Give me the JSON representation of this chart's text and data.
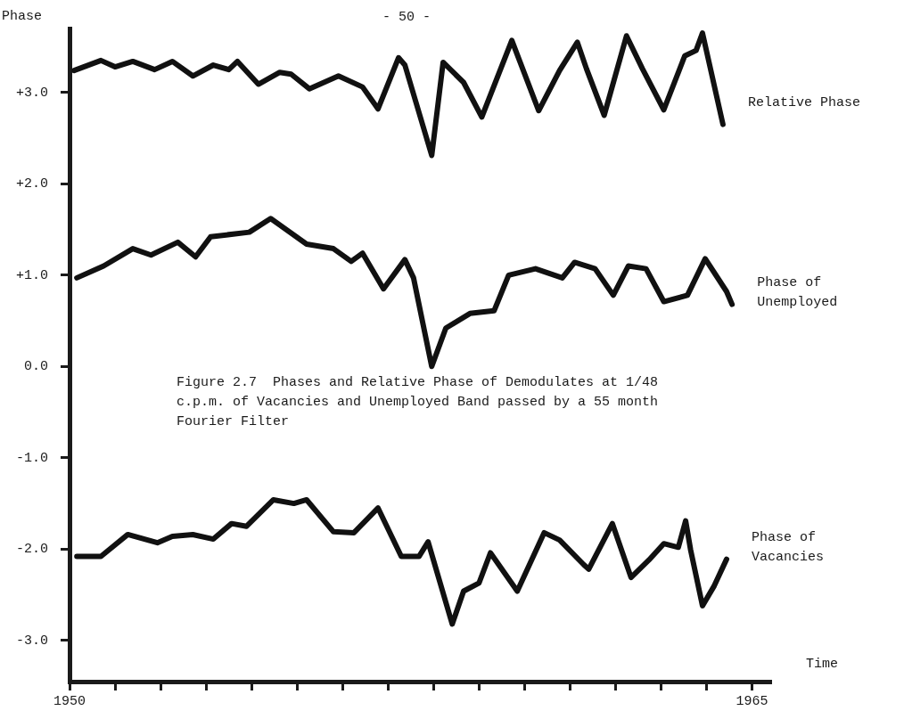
{
  "chart_data": {
    "type": "line",
    "ylabel": "Phase",
    "xlabel": "Time",
    "annotations": [
      "- 50 -",
      "Figure 2.7  Phases and Relative Phase of Demodulates at 1/48 c.p.m. of Vacancies and Unemployed Band passed by a 55 month Fourier Filter"
    ],
    "xlim": [
      1950,
      1965.4
    ],
    "xticks": [
      {
        "value": 1950,
        "label": "1950"
      },
      {
        "value": 1951,
        "label": null
      },
      {
        "value": 1952,
        "label": null
      },
      {
        "value": 1953,
        "label": null
      },
      {
        "value": 1954,
        "label": null
      },
      {
        "value": 1955,
        "label": null
      },
      {
        "value": 1956,
        "label": null
      },
      {
        "value": 1957,
        "label": null
      },
      {
        "value": 1958,
        "label": null
      },
      {
        "value": 1959,
        "label": null
      },
      {
        "value": 1960,
        "label": null
      },
      {
        "value": 1961,
        "label": null
      },
      {
        "value": 1962,
        "label": null
      },
      {
        "value": 1963,
        "label": null
      },
      {
        "value": 1964,
        "label": null
      },
      {
        "value": 1965,
        "label": "1965"
      }
    ],
    "ylim": [
      -3.45,
      3.7
    ],
    "yticks": [
      {
        "value": 3,
        "label": "+3.0"
      },
      {
        "value": 2,
        "label": "+2.0"
      },
      {
        "value": 1,
        "label": "+1.0"
      },
      {
        "value": 0,
        "label": "0.0"
      },
      {
        "value": -1,
        "label": "-1.0"
      },
      {
        "value": -2,
        "label": "-2.0"
      },
      {
        "value": -3,
        "label": "-3.0"
      }
    ],
    "legend": false,
    "marker": "none",
    "line_style": "solid",
    "series": [
      {
        "name": "Relative Phase",
        "color": "#111111",
        "x": [
          1950.1,
          1950.69,
          1951.0,
          1951.39,
          1951.87,
          1952.26,
          1952.71,
          1953.16,
          1953.5,
          1953.69,
          1954.15,
          1954.62,
          1954.87,
          1955.27,
          1955.91,
          1956.44,
          1956.78,
          1957.23,
          1957.37,
          1957.96,
          1958.21,
          1958.66,
          1959.06,
          1959.72,
          1960.31,
          1960.77,
          1961.16,
          1961.36,
          1961.75,
          1962.24,
          1962.59,
          1963.06,
          1963.52,
          1963.77,
          1963.91,
          1964.36
        ],
        "values": [
          3.24,
          3.35,
          3.28,
          3.34,
          3.25,
          3.34,
          3.18,
          3.3,
          3.25,
          3.34,
          3.09,
          3.22,
          3.2,
          3.04,
          3.18,
          3.06,
          2.82,
          3.38,
          3.3,
          2.31,
          3.33,
          3.11,
          2.73,
          3.57,
          2.8,
          3.24,
          3.55,
          3.26,
          2.75,
          3.62,
          3.26,
          2.81,
          3.4,
          3.46,
          3.65,
          2.65
        ]
      },
      {
        "name": "Phase of Unemployed",
        "color": "#111111",
        "x": [
          1950.16,
          1950.75,
          1951.39,
          1951.79,
          1952.38,
          1952.77,
          1953.1,
          1953.95,
          1954.42,
          1955.21,
          1955.8,
          1956.19,
          1956.44,
          1956.9,
          1957.37,
          1957.56,
          1957.96,
          1958.27,
          1958.8,
          1959.33,
          1959.65,
          1960.24,
          1960.83,
          1961.1,
          1961.55,
          1961.95,
          1962.28,
          1962.67,
          1963.06,
          1963.58,
          1963.97,
          1964.44,
          1964.56
        ],
        "values": [
          0.97,
          1.1,
          1.29,
          1.22,
          1.36,
          1.2,
          1.42,
          1.47,
          1.62,
          1.34,
          1.29,
          1.15,
          1.24,
          0.85,
          1.17,
          0.97,
          0.0,
          0.42,
          0.58,
          0.61,
          1.0,
          1.07,
          0.97,
          1.14,
          1.07,
          0.78,
          1.1,
          1.07,
          0.71,
          0.78,
          1.18,
          0.82,
          0.68
        ]
      },
      {
        "name": "Phase of Vacancies",
        "color": "#111111",
        "x": [
          1950.16,
          1950.69,
          1951.28,
          1951.93,
          1952.26,
          1952.71,
          1953.16,
          1953.56,
          1953.89,
          1954.48,
          1954.93,
          1955.21,
          1955.8,
          1956.25,
          1956.78,
          1957.29,
          1957.68,
          1957.88,
          1958.41,
          1958.66,
          1959.0,
          1959.25,
          1959.84,
          1960.43,
          1960.77,
          1961.3,
          1961.41,
          1961.93,
          1962.34,
          1962.73,
          1963.06,
          1963.38,
          1963.54,
          1963.65,
          1963.91,
          1964.17,
          1964.44
        ],
        "values": [
          -2.08,
          -2.08,
          -1.84,
          -1.93,
          -1.86,
          -1.84,
          -1.89,
          -1.72,
          -1.75,
          -1.46,
          -1.5,
          -1.46,
          -1.81,
          -1.82,
          -1.55,
          -2.08,
          -2.08,
          -1.92,
          -2.82,
          -2.46,
          -2.37,
          -2.04,
          -2.46,
          -1.82,
          -1.9,
          -2.17,
          -2.22,
          -1.72,
          -2.31,
          -2.12,
          -1.94,
          -1.98,
          -1.69,
          -2.01,
          -2.62,
          -2.4,
          -2.11
        ]
      }
    ]
  }
}
